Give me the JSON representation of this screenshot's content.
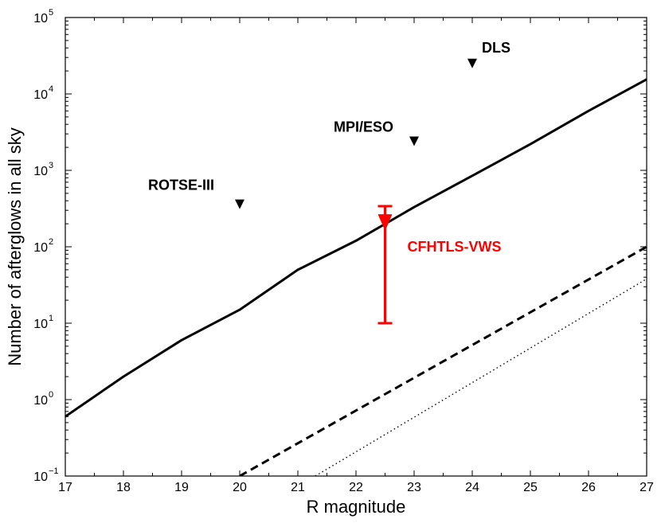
{
  "chart_data": {
    "type": "line",
    "title": "",
    "xlabel": "R magnitude",
    "ylabel": "Number of afterglows in all sky",
    "xlim": [
      17,
      27
    ],
    "ylim_exponent": [
      -1,
      5
    ],
    "y_scale": "log",
    "x_ticks": [
      "17",
      "18",
      "19",
      "20",
      "21",
      "22",
      "23",
      "24",
      "25",
      "26",
      "27"
    ],
    "y_ticks": [
      {
        "base": "10",
        "exp": "−1",
        "value": 0.1
      },
      {
        "base": "10",
        "exp": "0",
        "value": 1
      },
      {
        "base": "10",
        "exp": "1",
        "value": 10
      },
      {
        "base": "10",
        "exp": "2",
        "value": 100
      },
      {
        "base": "10",
        "exp": "3",
        "value": 1000
      },
      {
        "base": "10",
        "exp": "4",
        "value": 10000
      },
      {
        "base": "10",
        "exp": "5",
        "value": 100000
      }
    ],
    "series": [
      {
        "name": "solid",
        "style": "solid",
        "color": "#000000",
        "x": [
          17,
          18,
          19,
          20,
          21,
          22,
          23,
          24,
          25,
          26,
          27
        ],
        "y": [
          0.6,
          2.0,
          6.0,
          15,
          50,
          120,
          330,
          850,
          2200,
          6000,
          15500
        ]
      },
      {
        "name": "dashed",
        "style": "dashed",
        "color": "#000000",
        "x": [
          20,
          27
        ],
        "y": [
          0.1,
          100
        ]
      },
      {
        "name": "dotted",
        "style": "dotted",
        "color": "#000000",
        "x": [
          21.3,
          27
        ],
        "y": [
          0.1,
          38
        ]
      }
    ],
    "upper_limits": [
      {
        "label": "ROTSE-III",
        "x": 20,
        "y": 360,
        "color": "#000000"
      },
      {
        "label": "MPI/ESO",
        "x": 23,
        "y": 2400,
        "color": "#000000"
      },
      {
        "label": "DLS",
        "x": 24,
        "y": 25000,
        "color": "#000000"
      }
    ],
    "measurement": {
      "label": "CFHTLS-VWS",
      "x": 22.5,
      "y": 200,
      "y_low": 10,
      "y_high": 340,
      "color": "#ff0000"
    }
  }
}
